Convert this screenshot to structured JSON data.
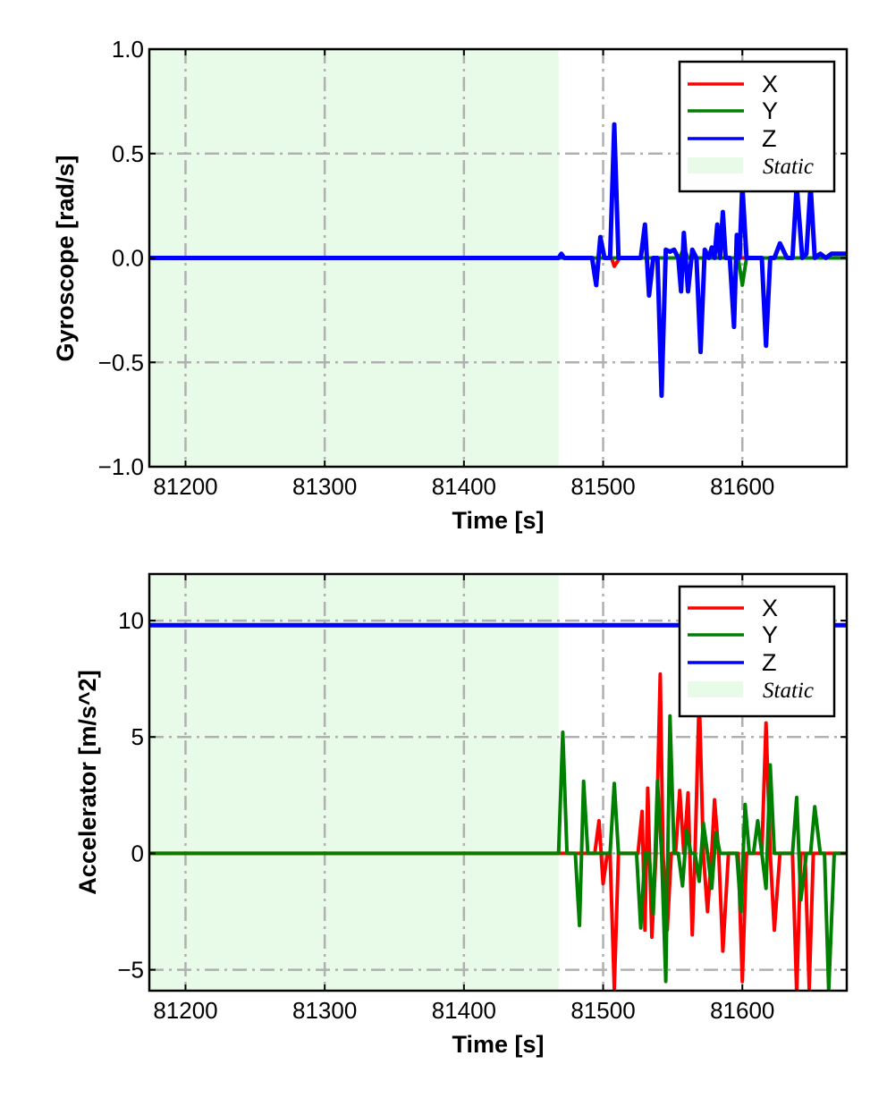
{
  "chart_data": [
    {
      "type": "line",
      "xlabel": "Time [s]",
      "ylabel": "Gyroscope [rad/s]",
      "xlim": [
        81174,
        81675
      ],
      "ylim": [
        -1.0,
        1.0
      ],
      "xticks": [
        81200,
        81300,
        81400,
        81500,
        81600
      ],
      "xtick_labels": [
        "81200",
        "81300",
        "81400",
        "81500",
        "81600"
      ],
      "yticks": [
        -1.0,
        -0.5,
        0.0,
        0.5,
        1.0
      ],
      "ytick_labels": [
        "−1.0",
        "−0.5",
        "0.0",
        "0.5",
        "1.0"
      ],
      "grid": true,
      "legend_position": "top-right",
      "legend": [
        "X",
        "Y",
        "Z",
        "Static"
      ],
      "static_region": {
        "label": "Static",
        "x_start": 81174,
        "x_end": 81468,
        "color": "#e8fbe8"
      },
      "series": [
        {
          "name": "X",
          "color": "#ff0000",
          "x": [
            81174,
            81468,
            81500,
            81506,
            81508,
            81512,
            81675
          ],
          "y": [
            0.0,
            0.0,
            0.0,
            0.0,
            -0.04,
            0.0,
            0.0
          ]
        },
        {
          "name": "Y",
          "color": "#008000",
          "x": [
            81174,
            81468,
            81555,
            81558,
            81561,
            81597,
            81600,
            81603,
            81675
          ],
          "y": [
            0.0,
            0.0,
            0.0,
            0.05,
            0.0,
            0.0,
            -0.13,
            0.0,
            0.0
          ]
        },
        {
          "name": "Z",
          "color": "#0000ff",
          "x": [
            81174,
            81468,
            81470,
            81472,
            81492,
            81495,
            81498,
            81501,
            81505,
            81508,
            81511,
            81522,
            81527,
            81530,
            81533,
            81536,
            81539,
            81542,
            81545,
            81548,
            81551,
            81554,
            81556,
            81558,
            81561,
            81564,
            81567,
            81570,
            81573,
            81576,
            81578,
            81580,
            81582,
            81584,
            81586,
            81588,
            81591,
            81594,
            81596,
            81598,
            81600,
            81603,
            81606,
            81611,
            81614,
            81617,
            81620,
            81623,
            81627,
            81632,
            81636,
            81639,
            81643,
            81646,
            81649,
            81652,
            81656,
            81660,
            81664,
            81670,
            81675
          ],
          "y": [
            0.0,
            0.0,
            0.02,
            0.0,
            0.0,
            -0.13,
            0.1,
            0.0,
            0.0,
            0.64,
            0.0,
            0.0,
            0.0,
            0.16,
            -0.18,
            0.0,
            0.0,
            -0.66,
            0.04,
            0.03,
            0.04,
            0.0,
            -0.16,
            0.12,
            -0.16,
            0.04,
            0.0,
            -0.45,
            0.04,
            0.0,
            0.05,
            0.0,
            0.16,
            0.0,
            0.22,
            0.0,
            0.0,
            -0.33,
            0.11,
            0.0,
            0.35,
            0.0,
            0.0,
            0.0,
            0.0,
            -0.42,
            0.0,
            0.0,
            0.07,
            0.0,
            0.0,
            0.35,
            0.0,
            0.02,
            0.35,
            0.0,
            0.02,
            0.0,
            0.02,
            0.02,
            0.02
          ]
        }
      ]
    },
    {
      "type": "line",
      "xlabel": "Time [s]",
      "ylabel": "Accelerator [m/s^2]",
      "xlim": [
        81174,
        81675
      ],
      "ylim": [
        -5.9,
        12.0
      ],
      "xticks": [
        81200,
        81300,
        81400,
        81500,
        81600
      ],
      "xtick_labels": [
        "81200",
        "81300",
        "81400",
        "81500",
        "81600"
      ],
      "yticks": [
        -5,
        0,
        5,
        10
      ],
      "ytick_labels": [
        "−5",
        "0",
        "5",
        "10"
      ],
      "grid": true,
      "legend_position": "top-right",
      "legend": [
        "X",
        "Y",
        "Z",
        "Static"
      ],
      "static_region": {
        "label": "Static",
        "x_start": 81174,
        "x_end": 81468,
        "color": "#e8fbe8"
      },
      "series": [
        {
          "name": "X",
          "color": "#ff0000",
          "x": [
            81174,
            81468,
            81494,
            81497,
            81500,
            81503,
            81505,
            81508,
            81511,
            81520,
            81525,
            81528,
            81530,
            81532,
            81535,
            81538,
            81541,
            81543,
            81546,
            81549,
            81552,
            81555,
            81558,
            81561,
            81564,
            81566,
            81569,
            81572,
            81575,
            81578,
            81580,
            81583,
            81586,
            81590,
            81594,
            81597,
            81600,
            81603,
            81606,
            81610,
            81614,
            81617,
            81620,
            81623,
            81627,
            81632,
            81636,
            81639,
            81642,
            81645,
            81648,
            81651,
            81653,
            81657,
            81662,
            81667,
            81675
          ],
          "y": [
            0.0,
            0.0,
            0.0,
            1.4,
            -1.3,
            0.0,
            0.0,
            -5.8,
            0.0,
            0.0,
            0.0,
            1.8,
            -3.3,
            2.8,
            -3.6,
            0.0,
            7.7,
            0.0,
            -3.3,
            0.0,
            0.0,
            2.7,
            0.0,
            2.6,
            -3.5,
            0.0,
            6.8,
            0.0,
            -2.5,
            0.0,
            2.3,
            0.0,
            -4.2,
            0.0,
            0.0,
            0.0,
            -5.5,
            0.0,
            0.0,
            0.0,
            0.0,
            5.6,
            0.0,
            -3.3,
            0.0,
            0.0,
            0.0,
            -6.0,
            0.0,
            0.0,
            -5.8,
            0.0,
            0.0,
            0.0,
            0.0,
            0.0,
            0.0
          ]
        },
        {
          "name": "Y",
          "color": "#008000",
          "x": [
            81174,
            81468,
            81471,
            81474,
            81480,
            81483,
            81486,
            81489,
            81492,
            81500,
            81505,
            81508,
            81511,
            81520,
            81524,
            81527,
            81530,
            81533,
            81536,
            81539,
            81542,
            81545,
            81548,
            81551,
            81554,
            81557,
            81560,
            81563,
            81566,
            81569,
            81572,
            81575,
            81578,
            81581,
            81584,
            81587,
            81590,
            81593,
            81596,
            81599,
            81602,
            81605,
            81608,
            81611,
            81614,
            81617,
            81620,
            81623,
            81627,
            81632,
            81636,
            81639,
            81642,
            81646,
            81649,
            81652,
            81656,
            81659,
            81662,
            81666,
            81675
          ],
          "y": [
            0.0,
            0.0,
            5.2,
            0.0,
            0.0,
            -3.1,
            3.1,
            0.0,
            0.0,
            0.0,
            0.0,
            3.0,
            0.0,
            0.0,
            0.0,
            -3.2,
            0.0,
            0.0,
            -2.6,
            3.1,
            0.0,
            -5.5,
            5.9,
            0.0,
            0.0,
            -1.4,
            1.0,
            0.0,
            0.0,
            -1.2,
            1.3,
            0.0,
            -1.5,
            0.9,
            0.0,
            0.0,
            0.0,
            0.0,
            0.0,
            -2.5,
            2.1,
            0.0,
            0.0,
            1.4,
            0.0,
            -1.5,
            3.8,
            0.0,
            0.0,
            0.0,
            0.0,
            2.4,
            -2.0,
            0.0,
            0.0,
            2.0,
            0.0,
            0.0,
            -5.9,
            0.0,
            0.0
          ]
        },
        {
          "name": "Z",
          "color": "#0000ff",
          "x": [
            81174,
            81675
          ],
          "y": [
            9.8,
            9.8
          ]
        }
      ]
    }
  ]
}
